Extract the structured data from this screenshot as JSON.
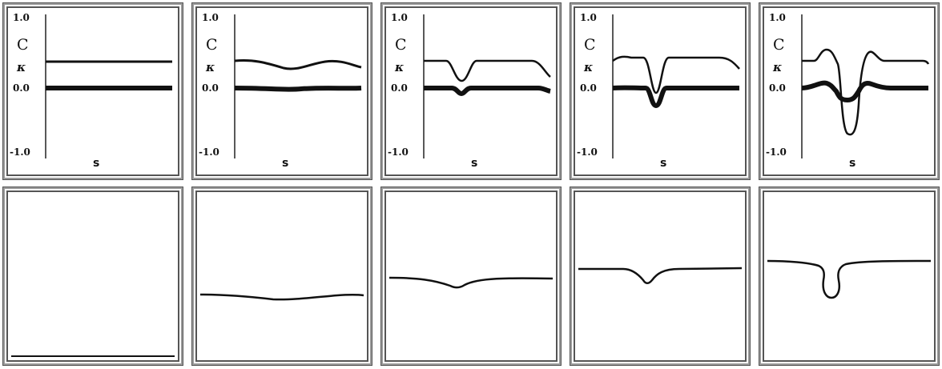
{
  "panels": [
    {
      "label_y_top": "1.0",
      "label_c": "C",
      "label_kappa": "κ",
      "label_y_mid": "0.0",
      "label_y_bot": "-1.0",
      "label_x": "s"
    },
    {
      "label_y_top": "1.0",
      "label_c": "C",
      "label_kappa": "κ",
      "label_y_mid": "0.0",
      "label_y_bot": "-1.0",
      "label_x": "s"
    },
    {
      "label_y_top": "1.0",
      "label_c": "C",
      "label_kappa": "κ",
      "label_y_mid": "0.0",
      "label_y_bot": "-1.0",
      "label_x": "s"
    },
    {
      "label_y_top": "1.0",
      "label_c": "C",
      "label_kappa": "κ",
      "label_y_mid": "0.0",
      "label_y_bot": "-1.0",
      "label_x": "s"
    },
    {
      "label_y_top": "1.0",
      "label_c": "C",
      "label_kappa": "κ",
      "label_y_mid": "0.0",
      "label_y_bot": "-1.0",
      "label_x": "s"
    }
  ],
  "colors": {
    "curve": "#111111",
    "axis": "#222222",
    "frame": "#555555"
  }
}
